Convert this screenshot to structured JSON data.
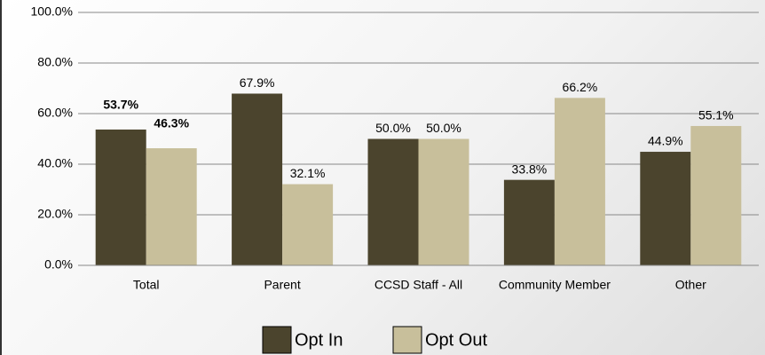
{
  "chart_data": {
    "type": "bar",
    "categories": [
      "Total",
      "Parent",
      "CCSD Staff - All",
      "Community Member",
      "Other"
    ],
    "series": [
      {
        "name": "Opt In",
        "color": "#4b442d",
        "values": [
          53.7,
          67.9,
          50.0,
          33.8,
          44.9
        ],
        "value_labels": [
          "53.7%",
          "67.9%",
          "50.0%",
          "33.8%",
          "44.9%"
        ]
      },
      {
        "name": "Opt Out",
        "color": "#c8bf9b",
        "values": [
          46.3,
          32.1,
          50.0,
          66.2,
          55.1
        ],
        "value_labels": [
          "46.3%",
          "32.1%",
          "50.0%",
          "66.2%",
          "55.1%"
        ]
      }
    ],
    "ylim": [
      0,
      100
    ],
    "yticks": [
      {
        "value": 0,
        "label": "0.0%"
      },
      {
        "value": 20,
        "label": "20.0%"
      },
      {
        "value": 40,
        "label": "40.0%"
      },
      {
        "value": 60,
        "label": "60.0%"
      },
      {
        "value": 80,
        "label": "80.0%"
      },
      {
        "value": 100,
        "label": "100.0%"
      }
    ],
    "grid": true,
    "legend": "bottom"
  }
}
